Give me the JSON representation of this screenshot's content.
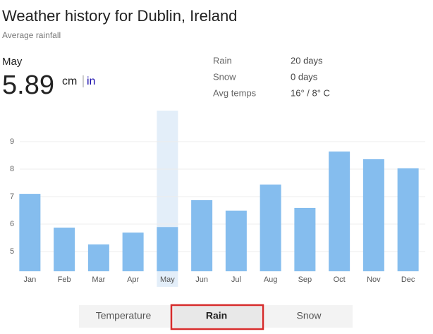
{
  "header": {
    "title": "Weather history for Dublin, Ireland",
    "subtitle": "Average rainfall",
    "unit": "cm",
    "alt_unit": "in"
  },
  "details": [
    {
      "label": "Rain",
      "value": "20 days"
    },
    {
      "label": "Snow",
      "value": "0 days"
    },
    {
      "label": "Avg temps",
      "value": "16° / 8° C"
    }
  ],
  "chart_data": {
    "type": "bar",
    "categories": [
      "Jan",
      "Feb",
      "Mar",
      "Apr",
      "May",
      "Jun",
      "Jul",
      "Aug",
      "Sep",
      "Oct",
      "Nov",
      "Dec"
    ],
    "values": [
      7.1,
      5.87,
      5.26,
      5.69,
      5.89,
      6.87,
      6.49,
      7.44,
      6.59,
      8.64,
      8.36,
      8.03
    ],
    "color": "#85bdee",
    "selected": 4,
    "ylim": [
      4.28,
      10.13
    ],
    "yticks": [
      5,
      6,
      7,
      8,
      9
    ],
    "grid": true
  },
  "tabs": [
    {
      "label": "Temperature"
    },
    {
      "label": "Rain",
      "active": true
    },
    {
      "label": "Snow"
    }
  ]
}
